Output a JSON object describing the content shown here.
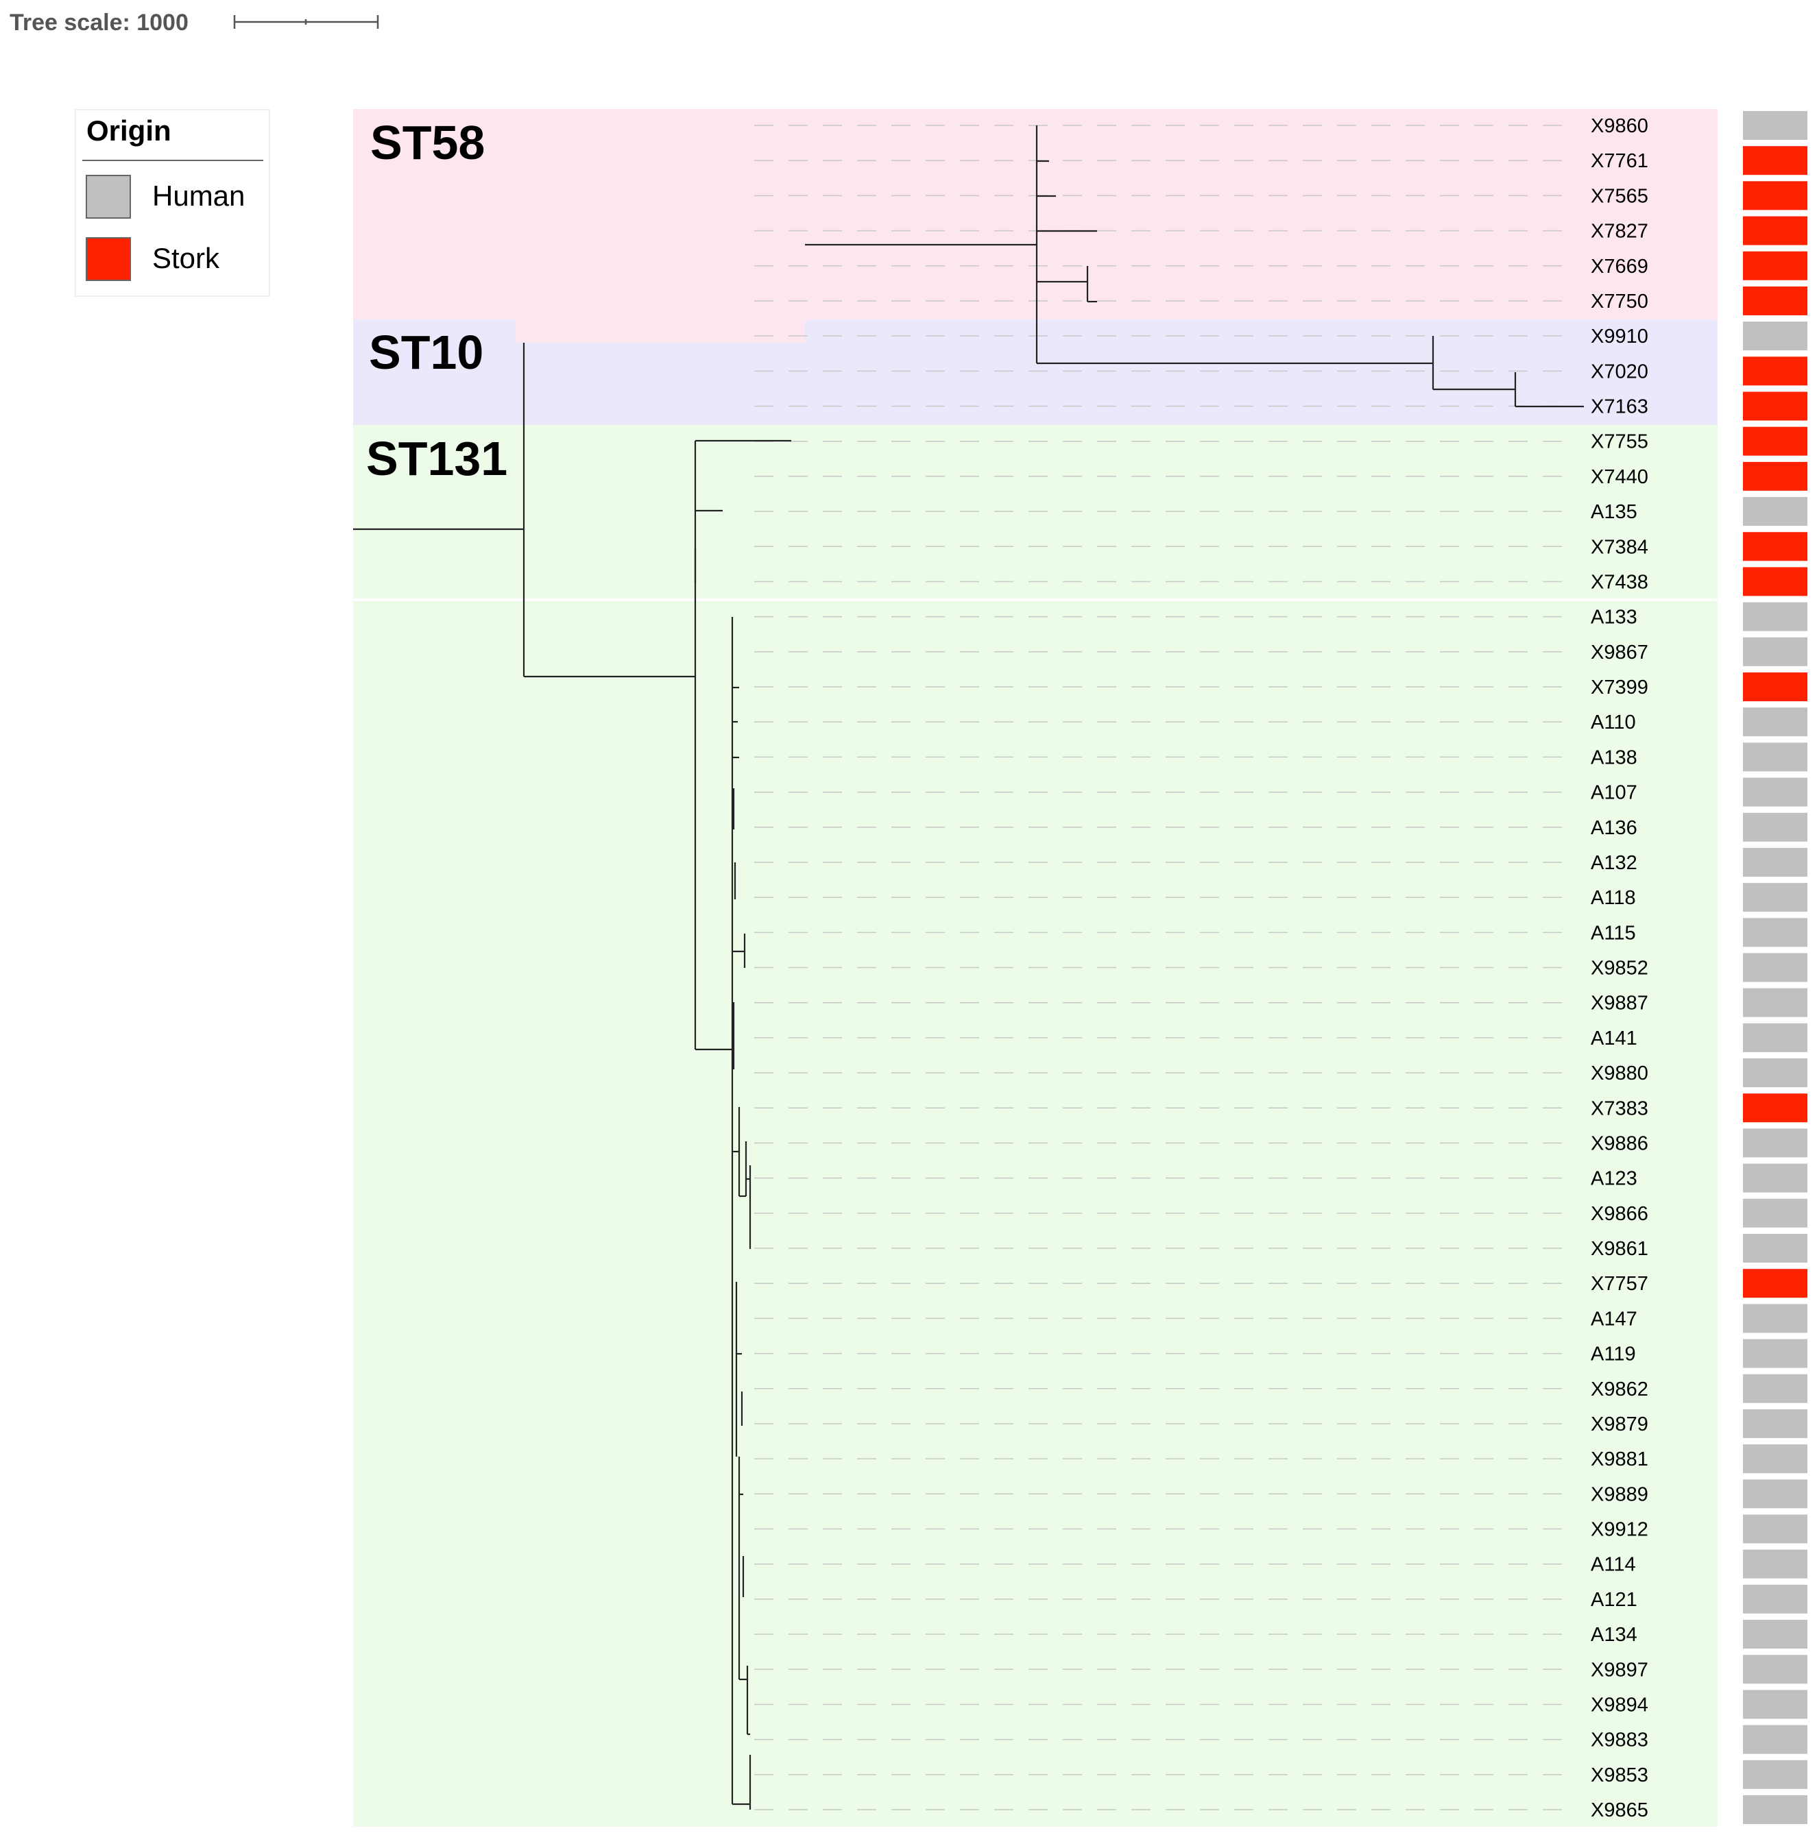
{
  "tree_scale": {
    "label": "Tree scale: 1000",
    "value": 1000
  },
  "legend": {
    "title": "Origin",
    "items": [
      {
        "label": "Human",
        "color": "#c0c0c0"
      },
      {
        "label": "Stork",
        "color": "#ff2200"
      }
    ]
  },
  "clades": [
    {
      "label": "ST58",
      "color": "#fde6ef"
    },
    {
      "label": "ST10",
      "color": "#ece8fb"
    },
    {
      "label": "ST131",
      "color": "#edfce8"
    }
  ],
  "tips": [
    {
      "label": "X9860",
      "origin": "Human"
    },
    {
      "label": "X7761",
      "origin": "Stork"
    },
    {
      "label": "X7565",
      "origin": "Stork"
    },
    {
      "label": "X7827",
      "origin": "Stork"
    },
    {
      "label": "X7669",
      "origin": "Stork"
    },
    {
      "label": "X7750",
      "origin": "Stork"
    },
    {
      "label": "X9910",
      "origin": "Human"
    },
    {
      "label": "X7020",
      "origin": "Stork"
    },
    {
      "label": "X7163",
      "origin": "Stork"
    },
    {
      "label": "X7755",
      "origin": "Stork"
    },
    {
      "label": "X7440",
      "origin": "Stork"
    },
    {
      "label": "A135",
      "origin": "Human"
    },
    {
      "label": "X7384",
      "origin": "Stork"
    },
    {
      "label": "X7438",
      "origin": "Stork"
    },
    {
      "label": "A133",
      "origin": "Human"
    },
    {
      "label": "X9867",
      "origin": "Human"
    },
    {
      "label": "X7399",
      "origin": "Stork"
    },
    {
      "label": "A110",
      "origin": "Human"
    },
    {
      "label": "A138",
      "origin": "Human"
    },
    {
      "label": "A107",
      "origin": "Human"
    },
    {
      "label": "A136",
      "origin": "Human"
    },
    {
      "label": "A132",
      "origin": "Human"
    },
    {
      "label": "A118",
      "origin": "Human"
    },
    {
      "label": "A115",
      "origin": "Human"
    },
    {
      "label": "X9852",
      "origin": "Human"
    },
    {
      "label": "X9887",
      "origin": "Human"
    },
    {
      "label": "A141",
      "origin": "Human"
    },
    {
      "label": "X9880",
      "origin": "Human"
    },
    {
      "label": "X7383",
      "origin": "Stork"
    },
    {
      "label": "X9886",
      "origin": "Human"
    },
    {
      "label": "A123",
      "origin": "Human"
    },
    {
      "label": "X9866",
      "origin": "Human"
    },
    {
      "label": "X9861",
      "origin": "Human"
    },
    {
      "label": "X7757",
      "origin": "Stork"
    },
    {
      "label": "A147",
      "origin": "Human"
    },
    {
      "label": "A119",
      "origin": "Human"
    },
    {
      "label": "X9862",
      "origin": "Human"
    },
    {
      "label": "X9879",
      "origin": "Human"
    },
    {
      "label": "X9881",
      "origin": "Human"
    },
    {
      "label": "X9889",
      "origin": "Human"
    },
    {
      "label": "X9912",
      "origin": "Human"
    },
    {
      "label": "A114",
      "origin": "Human"
    },
    {
      "label": "A121",
      "origin": "Human"
    },
    {
      "label": "A134",
      "origin": "Human"
    },
    {
      "label": "X9897",
      "origin": "Human"
    },
    {
      "label": "X9894",
      "origin": "Human"
    },
    {
      "label": "X9883",
      "origin": "Human"
    },
    {
      "label": "X9853",
      "origin": "Human"
    },
    {
      "label": "X9865",
      "origin": "Human"
    }
  ]
}
